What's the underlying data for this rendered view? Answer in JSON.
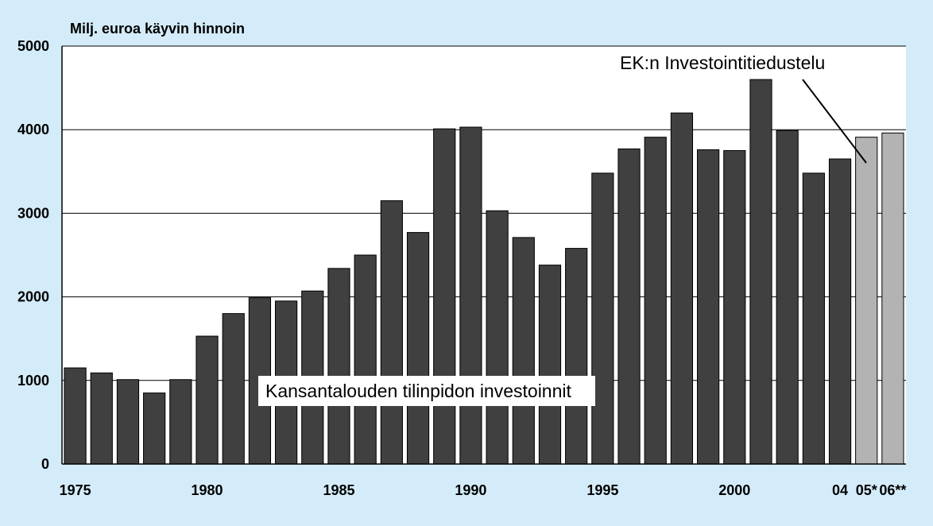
{
  "chart_data": {
    "type": "bar",
    "ylabel": "Milj. euroa käyvin hinnoin",
    "ylim": [
      0,
      5000
    ],
    "y_ticks": [
      "0",
      "1000",
      "2000",
      "3000",
      "4000",
      "5000"
    ],
    "x_tick_labels": [
      "1975",
      "1980",
      "1985",
      "1990",
      "1995",
      "2000",
      "04",
      "05*",
      "06**"
    ],
    "grid": true,
    "categories": [
      "1975",
      "1976",
      "1977",
      "1978",
      "1979",
      "1980",
      "1981",
      "1982",
      "1983",
      "1984",
      "1985",
      "1986",
      "1987",
      "1988",
      "1989",
      "1990",
      "1991",
      "1992",
      "1993",
      "1994",
      "1995",
      "1996",
      "1997",
      "1998",
      "1999",
      "2000",
      "2001",
      "2002",
      "2003",
      "2004",
      "2005",
      "2006"
    ],
    "series": [
      {
        "name": "Kansantalouden tilinpidon investoinnit",
        "color": "#404040",
        "values": [
          1150,
          1090,
          1010,
          850,
          1010,
          1530,
          1800,
          1990,
          1950,
          2070,
          2340,
          2500,
          3150,
          2770,
          4010,
          4030,
          3030,
          2710,
          2380,
          2580,
          3480,
          3770,
          3910,
          4200,
          3760,
          3750,
          4600,
          3990,
          3480,
          3650,
          null,
          null
        ]
      },
      {
        "name": "EK:n Investointitiedustelu",
        "color": "#b3b3b3",
        "values": [
          null,
          null,
          null,
          null,
          null,
          null,
          null,
          null,
          null,
          null,
          null,
          null,
          null,
          null,
          null,
          null,
          null,
          null,
          null,
          null,
          null,
          null,
          null,
          null,
          null,
          null,
          null,
          null,
          null,
          null,
          3910,
          3960
        ]
      }
    ],
    "annotations": {
      "kansantalous": "Kansantalouden tilinpidon investoinnit",
      "ek": "EK:n Investointitiedustelu"
    }
  }
}
